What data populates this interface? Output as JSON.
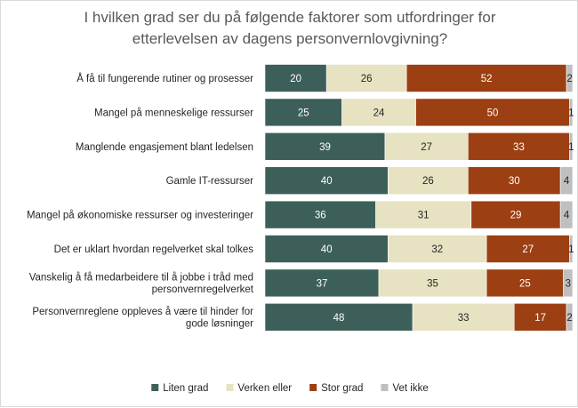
{
  "chart_data": {
    "type": "bar",
    "orientation": "horizontal",
    "stacked": true,
    "title_lines": [
      "I hvilken grad ser du på følgende faktorer som utfordringer for",
      "etterlevelsen av dagens personvernlovgivning?"
    ],
    "categories": [
      [
        "Å få til fungerende rutiner og prosesser"
      ],
      [
        "Mangel på menneskelige ressurser"
      ],
      [
        "Manglende engasjement blant ledelsen"
      ],
      [
        "Gamle IT-ressurser"
      ],
      [
        "Mangel på økonomiske ressurser og investeringer"
      ],
      [
        "Det er uklart hvordan regelverket skal tolkes"
      ],
      [
        "Vanskelig å få medarbeidere til å jobbe i tråd med",
        "personvernregelverket"
      ],
      [
        "Personvernreglene oppleves å være til hinder for",
        "gode løsninger"
      ]
    ],
    "series": [
      {
        "name": "Liten grad",
        "color": "#3d5f5a",
        "label_color": "#ffffff",
        "values": [
          20,
          25,
          39,
          40,
          36,
          40,
          37,
          48
        ]
      },
      {
        "name": "Verken eller",
        "color": "#e6e2c2",
        "label_color": "#262626",
        "values": [
          26,
          24,
          27,
          26,
          31,
          32,
          35,
          33
        ]
      },
      {
        "name": "Stor grad",
        "color": "#9c3f12",
        "label_color": "#ffffff",
        "values": [
          52,
          50,
          33,
          30,
          29,
          27,
          25,
          17
        ]
      },
      {
        "name": "Vet ikke",
        "color": "#bfbfbf",
        "label_color": "#262626",
        "values": [
          2,
          1,
          1,
          4,
          4,
          1,
          3,
          2
        ]
      }
    ],
    "xlim": [
      0,
      100
    ],
    "grid": false,
    "legend_position": "bottom"
  }
}
